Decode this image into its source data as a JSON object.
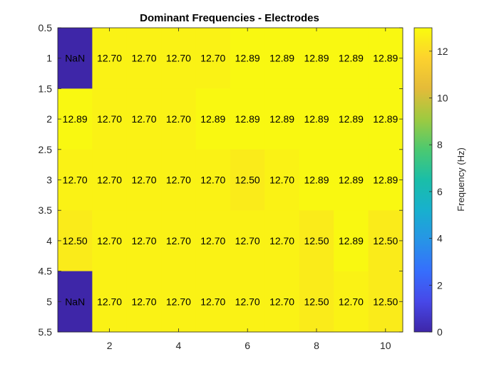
{
  "chart_data": {
    "type": "heatmap",
    "title": "Dominant Frequencies - Electrodes",
    "colorbar_label": "Frequency (Hz)",
    "colormap": "parula",
    "clim": [
      0,
      13
    ],
    "nan_label": "NaN",
    "x_ticks": [
      2,
      4,
      6,
      8,
      10
    ],
    "y_ticks": [
      0.5,
      1,
      1.5,
      2,
      2.5,
      3,
      3.5,
      4,
      4.5,
      5,
      5.5
    ],
    "colorbar_ticks": [
      0,
      2,
      4,
      6,
      8,
      10,
      12
    ],
    "xlim": [
      0.5,
      10.5
    ],
    "ylim": [
      0.5,
      5.5
    ],
    "rows": [
      1,
      2,
      3,
      4,
      5
    ],
    "columns": [
      1,
      2,
      3,
      4,
      5,
      6,
      7,
      8,
      9,
      10
    ],
    "values": [
      [
        null,
        12.7,
        12.7,
        12.7,
        12.7,
        12.89,
        12.89,
        12.89,
        12.89,
        12.89
      ],
      [
        12.89,
        12.7,
        12.7,
        12.7,
        12.89,
        12.89,
        12.89,
        12.89,
        12.89,
        12.89
      ],
      [
        12.7,
        12.7,
        12.7,
        12.7,
        12.7,
        12.5,
        12.7,
        12.89,
        12.89,
        12.89
      ],
      [
        12.5,
        12.7,
        12.7,
        12.7,
        12.7,
        12.7,
        12.7,
        12.5,
        12.89,
        12.5
      ],
      [
        null,
        12.7,
        12.7,
        12.7,
        12.7,
        12.7,
        12.7,
        12.5,
        12.7,
        12.5
      ]
    ]
  }
}
